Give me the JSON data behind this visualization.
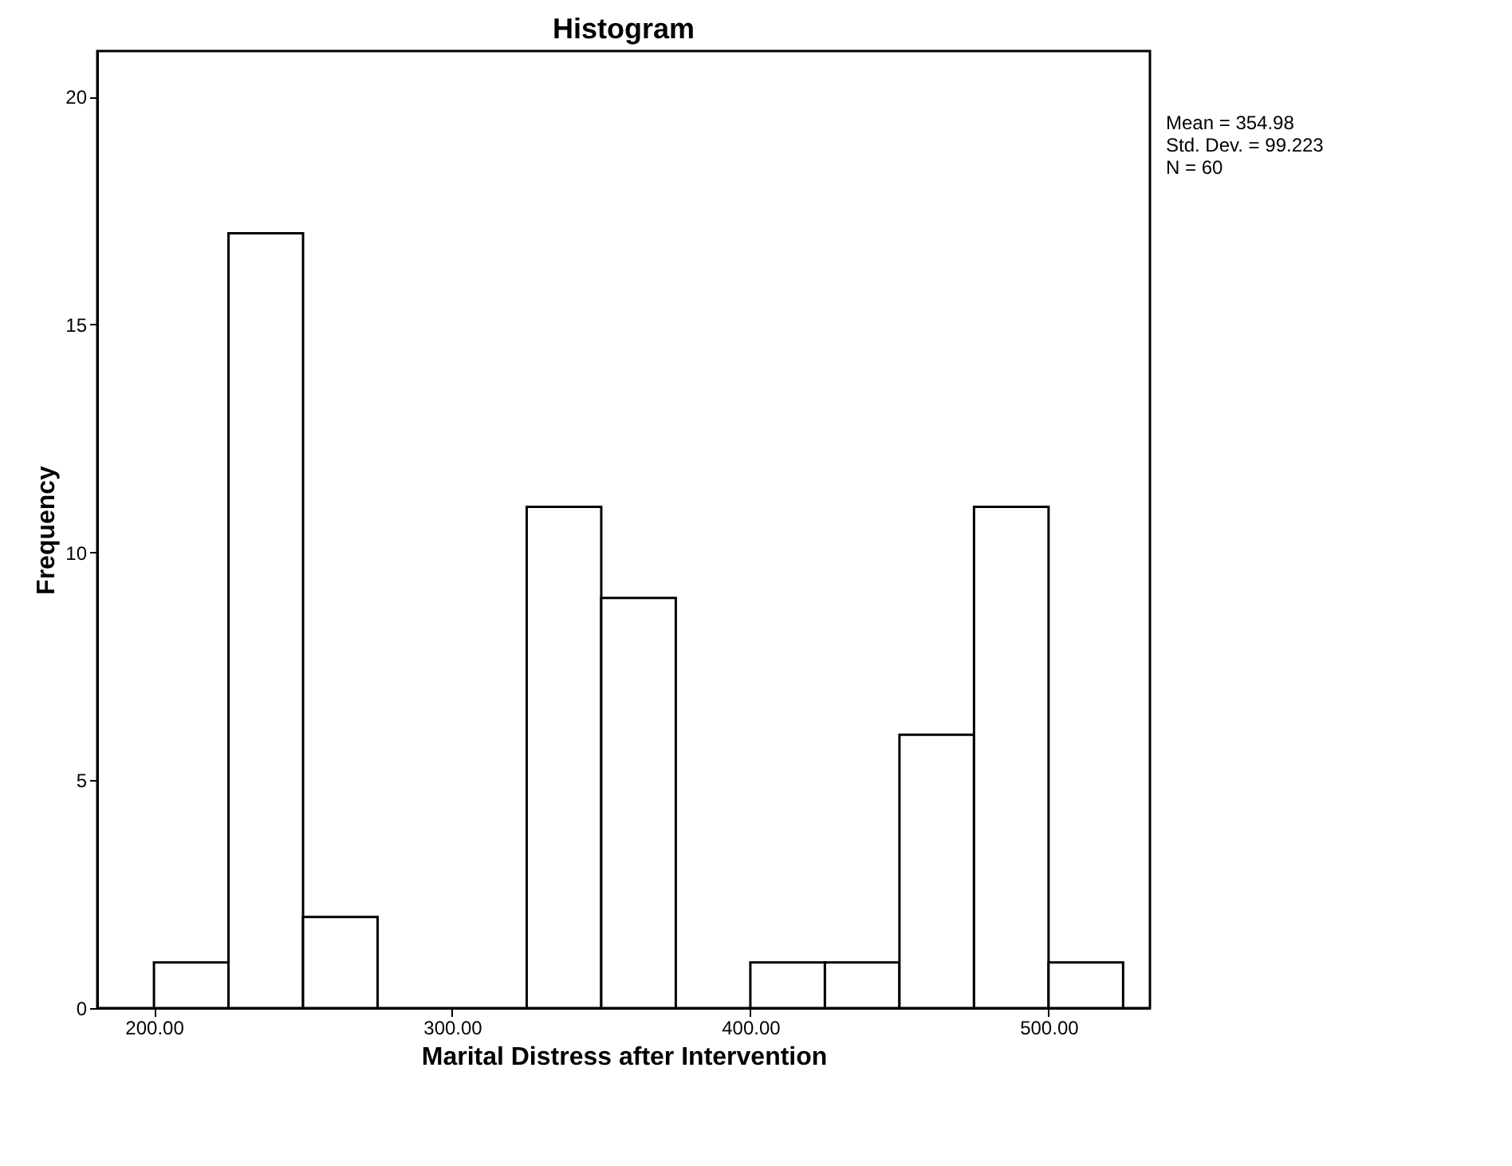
{
  "chart_data": {
    "type": "histogram",
    "title": "Histogram",
    "xlabel": "Marital Distress after Intervention",
    "ylabel": "Frequency",
    "bins": [
      200,
      225,
      250,
      275,
      300,
      325,
      350,
      375,
      400,
      425,
      450,
      475,
      500,
      525
    ],
    "values": [
      1,
      17,
      2,
      0,
      0,
      11,
      9,
      0,
      1,
      1,
      6,
      11,
      1
    ],
    "color": "#ffffff",
    "xlim": [
      181,
      534
    ],
    "xticks": [
      {
        "value": 200,
        "label": "200.00"
      },
      {
        "value": 300,
        "label": "300.00"
      },
      {
        "value": 400,
        "label": "400.00"
      },
      {
        "value": 500,
        "label": "500.00"
      }
    ],
    "ylim": [
      0,
      21
    ],
    "yticks": [
      0,
      5,
      10,
      15,
      20
    ],
    "grid": false,
    "annotations": [
      "Mean = 354.98",
      "Std. Dev. = 99.223",
      "N = 60"
    ]
  }
}
